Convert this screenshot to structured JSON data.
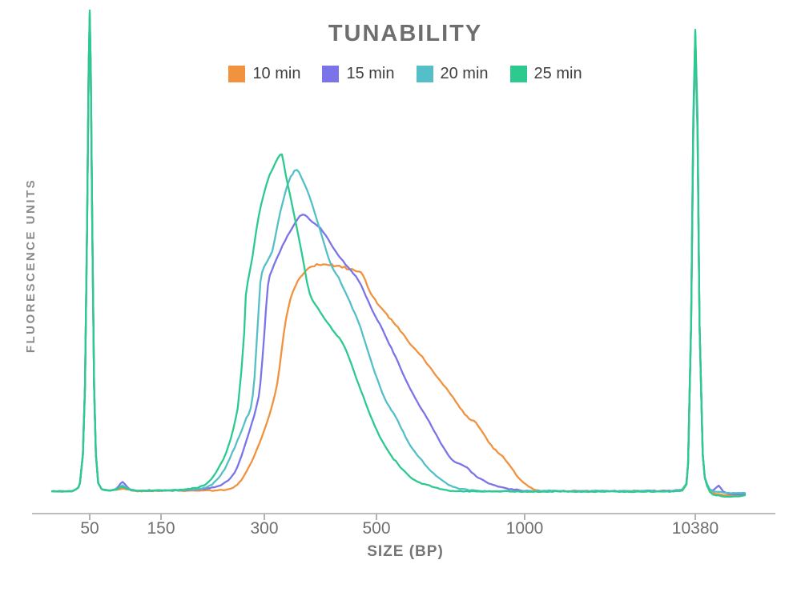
{
  "chart": {
    "title": "TUNABILITY"
  },
  "chart_data": {
    "type": "line",
    "title": "TUNABILITY",
    "xlabel": "SIZE (BP)",
    "ylabel": "FLUORESCENCE UNITS",
    "legend_position": "top-center",
    "x_axis": {
      "scale": "nonlinear-log-like-electropherogram",
      "ticks": [
        50,
        150,
        300,
        500,
        1000,
        10380
      ],
      "tick_labels": [
        "50",
        "150",
        "300",
        "500",
        "1000",
        "10380"
      ]
    },
    "y_axis": {
      "label": "FLUORESCENCE UNITS",
      "ticks_shown": false,
      "range": [
        0,
        100
      ]
    },
    "annotations": [
      "lower marker spike at 50 bp (all traces overlap)",
      "upper marker spike at 10380 bp (all traces overlap)"
    ],
    "series": [
      {
        "name": "10 min",
        "color": "#F0923E",
        "peak_bp": 400,
        "peak_intensity": 47,
        "points": [
          [
            28,
            0.3
          ],
          [
            34,
            0.3
          ],
          [
            39,
            0.5
          ],
          [
            43,
            2
          ],
          [
            45,
            8
          ],
          [
            46.5,
            22
          ],
          [
            48,
            55
          ],
          [
            49.2,
            88
          ],
          [
            50,
            98
          ],
          [
            50.8,
            88
          ],
          [
            52,
            55
          ],
          [
            53.5,
            22
          ],
          [
            55,
            8
          ],
          [
            57,
            2
          ],
          [
            60,
            0.8
          ],
          [
            66,
            0.5
          ],
          [
            75,
            0.6
          ],
          [
            83,
            0.8
          ],
          [
            92,
            0.6
          ],
          [
            105,
            0.3
          ],
          [
            125,
            0.4
          ],
          [
            160,
            0.4
          ],
          [
            200,
            0.5
          ],
          [
            235,
            0.7
          ],
          [
            257,
            2.7
          ],
          [
            280,
            7.6
          ],
          [
            303,
            14.3
          ],
          [
            318,
            22.6
          ],
          [
            331,
            36
          ],
          [
            346,
            43
          ],
          [
            369,
            46.6
          ],
          [
            392,
            47.4
          ],
          [
            412,
            47.1
          ],
          [
            437,
            46.6
          ],
          [
            452,
            46.2
          ],
          [
            470,
            45.3
          ],
          [
            487,
            41.3
          ],
          [
            519,
            37.5
          ],
          [
            553,
            34.2
          ],
          [
            586,
            30.8
          ],
          [
            626,
            27.5
          ],
          [
            667,
            23.7
          ],
          [
            708,
            20.4
          ],
          [
            755,
            16.4
          ],
          [
            805,
            13.8
          ],
          [
            855,
            9.8
          ],
          [
            911,
            7.1
          ],
          [
            971,
            3.2
          ],
          [
            1092,
            1
          ],
          [
            1274,
            0.4
          ],
          [
            1600,
            0.3
          ],
          [
            2200,
            0.4
          ],
          [
            3000,
            0.3
          ],
          [
            4200,
            0.4
          ],
          [
            5600,
            0.3
          ],
          [
            7200,
            0.4
          ],
          [
            8400,
            0.5
          ],
          [
            8900,
            1
          ],
          [
            9400,
            6
          ],
          [
            9800,
            35
          ],
          [
            10100,
            75
          ],
          [
            10380,
            94
          ],
          [
            10700,
            75
          ],
          [
            11000,
            35
          ],
          [
            11500,
            8
          ],
          [
            12200,
            1.5
          ],
          [
            13200,
            0
          ],
          [
            14300,
            -0.3
          ],
          [
            15500,
            -0.5
          ],
          [
            17500,
            -0.5
          ],
          [
            20500,
            -0.4
          ]
        ]
      },
      {
        "name": "15 min",
        "color": "#7B74E8",
        "peak_bp": 357,
        "peak_intensity": 58,
        "points": [
          [
            28,
            0.3
          ],
          [
            34,
            0.4
          ],
          [
            39,
            0.5
          ],
          [
            43,
            2
          ],
          [
            45,
            8
          ],
          [
            46.5,
            22
          ],
          [
            48,
            55
          ],
          [
            49.2,
            88
          ],
          [
            50,
            98.6
          ],
          [
            50.8,
            88
          ],
          [
            52,
            55
          ],
          [
            53.5,
            22
          ],
          [
            55,
            8
          ],
          [
            57,
            2
          ],
          [
            60,
            0.8
          ],
          [
            66,
            0.5
          ],
          [
            75,
            0.8
          ],
          [
            83,
            2.2
          ],
          [
            92,
            0.8
          ],
          [
            105,
            0.4
          ],
          [
            125,
            0.5
          ],
          [
            160,
            0.5
          ],
          [
            200,
            0.8
          ],
          [
            227,
            1.8
          ],
          [
            246,
            4.3
          ],
          [
            262,
            9.3
          ],
          [
            284,
            17.6
          ],
          [
            292,
            22.6
          ],
          [
            300,
            33
          ],
          [
            305,
            43
          ],
          [
            311,
            46.3
          ],
          [
            326,
            51.2
          ],
          [
            344,
            55.7
          ],
          [
            357,
            57.7
          ],
          [
            373,
            56.2
          ],
          [
            387,
            54.9
          ],
          [
            402,
            52.4
          ],
          [
            421,
            49.1
          ],
          [
            460,
            44.1
          ],
          [
            487,
            38.6
          ],
          [
            519,
            33
          ],
          [
            553,
            27
          ],
          [
            586,
            21.4
          ],
          [
            626,
            16.4
          ],
          [
            667,
            11.4
          ],
          [
            708,
            7.1
          ],
          [
            755,
            5.5
          ],
          [
            805,
            3.2
          ],
          [
            855,
            1.8
          ],
          [
            911,
            1
          ],
          [
            982,
            0.5
          ],
          [
            1100,
            0.4
          ],
          [
            1400,
            0.4
          ],
          [
            2000,
            0.3
          ],
          [
            2800,
            0.4
          ],
          [
            3800,
            0.3
          ],
          [
            5000,
            0.4
          ],
          [
            6500,
            0.4
          ],
          [
            8000,
            0.5
          ],
          [
            8900,
            1.2
          ],
          [
            9400,
            6
          ],
          [
            9800,
            35
          ],
          [
            10100,
            75
          ],
          [
            10380,
            94.6
          ],
          [
            10700,
            75
          ],
          [
            11000,
            35
          ],
          [
            11500,
            8
          ],
          [
            12200,
            1.8
          ],
          [
            13200,
            0.5
          ],
          [
            14300,
            1.5
          ],
          [
            15200,
            0.3
          ],
          [
            16500,
            -0.2
          ],
          [
            18500,
            -0.3
          ],
          [
            20500,
            -0.2
          ]
        ]
      },
      {
        "name": "20 min",
        "color": "#55BFC9",
        "peak_bp": 348,
        "peak_intensity": 67,
        "points": [
          [
            28,
            0.3
          ],
          [
            34,
            0.3
          ],
          [
            39,
            0.5
          ],
          [
            43,
            2
          ],
          [
            45,
            8
          ],
          [
            46.5,
            22
          ],
          [
            48,
            55
          ],
          [
            49.2,
            88
          ],
          [
            50,
            99.3
          ],
          [
            50.8,
            88
          ],
          [
            52,
            55
          ],
          [
            53.5,
            22
          ],
          [
            55,
            8
          ],
          [
            57,
            2
          ],
          [
            60,
            0.8
          ],
          [
            66,
            0.5
          ],
          [
            75,
            0.7
          ],
          [
            83,
            1.5
          ],
          [
            92,
            0.7
          ],
          [
            105,
            0.4
          ],
          [
            125,
            0.5
          ],
          [
            160,
            0.5
          ],
          [
            190,
            0.8
          ],
          [
            205,
            1.2
          ],
          [
            217,
            2.5
          ],
          [
            230,
            5
          ],
          [
            246,
            9.5
          ],
          [
            258,
            13
          ],
          [
            266,
            15.5
          ],
          [
            274,
            17.6
          ],
          [
            281,
            24
          ],
          [
            287,
            35
          ],
          [
            292,
            43.6
          ],
          [
            300,
            47
          ],
          [
            311,
            50.2
          ],
          [
            323,
            58.5
          ],
          [
            335,
            64.5
          ],
          [
            341,
            66
          ],
          [
            348,
            67
          ],
          [
            364,
            62.9
          ],
          [
            378,
            57.9
          ],
          [
            392,
            52.4
          ],
          [
            406,
            47.4
          ],
          [
            421,
            44.5
          ],
          [
            443,
            39.5
          ],
          [
            465,
            34.2
          ],
          [
            487,
            27.5
          ],
          [
            519,
            19.7
          ],
          [
            553,
            14.8
          ],
          [
            586,
            9.8
          ],
          [
            626,
            6
          ],
          [
            667,
            3.2
          ],
          [
            708,
            1.5
          ],
          [
            755,
            0.7
          ],
          [
            822,
            0.4
          ],
          [
            1000,
            0.3
          ],
          [
            1400,
            0.4
          ],
          [
            2000,
            0.3
          ],
          [
            2800,
            0.4
          ],
          [
            3800,
            0.3
          ],
          [
            5000,
            0.4
          ],
          [
            6500,
            0.3
          ],
          [
            8000,
            0.5
          ],
          [
            8900,
            1.2
          ],
          [
            9400,
            6
          ],
          [
            9800,
            35
          ],
          [
            10100,
            75
          ],
          [
            10380,
            95.3
          ],
          [
            10700,
            75
          ],
          [
            11000,
            35
          ],
          [
            11500,
            8
          ],
          [
            12200,
            1.8
          ],
          [
            13200,
            0.3
          ],
          [
            14300,
            0.2
          ],
          [
            15500,
            0
          ],
          [
            17500,
            -0.1
          ],
          [
            20500,
            0
          ]
        ]
      },
      {
        "name": "25 min",
        "color": "#2CCA8F",
        "peak_bp": 325,
        "peak_intensity": 70,
        "points": [
          [
            28,
            0.3
          ],
          [
            34,
            0.3
          ],
          [
            39,
            0.5
          ],
          [
            43,
            2
          ],
          [
            45,
            8
          ],
          [
            46.5,
            22
          ],
          [
            48,
            55
          ],
          [
            49.2,
            88
          ],
          [
            50,
            100
          ],
          [
            50.8,
            88
          ],
          [
            52,
            55
          ],
          [
            53.5,
            22
          ],
          [
            55,
            8
          ],
          [
            57,
            2
          ],
          [
            60,
            0.8
          ],
          [
            66,
            0.5
          ],
          [
            75,
            0.7
          ],
          [
            83,
            1.2
          ],
          [
            92,
            0.7
          ],
          [
            105,
            0.4
          ],
          [
            125,
            0.5
          ],
          [
            160,
            0.5
          ],
          [
            185,
            0.9
          ],
          [
            203,
            1.8
          ],
          [
            217,
            4.3
          ],
          [
            235,
            9.3
          ],
          [
            251,
            17.6
          ],
          [
            257,
            25
          ],
          [
            262,
            33
          ],
          [
            265,
            41
          ],
          [
            277,
            49
          ],
          [
            289,
            57.4
          ],
          [
            303,
            64
          ],
          [
            311,
            67
          ],
          [
            319,
            69.2
          ],
          [
            325,
            70
          ],
          [
            331,
            65.7
          ],
          [
            344,
            57.4
          ],
          [
            356,
            49.6
          ],
          [
            369,
            41.3
          ],
          [
            387,
            37.6
          ],
          [
            409,
            33.8
          ],
          [
            432,
            30.3
          ],
          [
            465,
            21.4
          ],
          [
            487,
            15.9
          ],
          [
            519,
            9.8
          ],
          [
            553,
            6
          ],
          [
            586,
            3.2
          ],
          [
            626,
            1.8
          ],
          [
            681,
            0.7
          ],
          [
            736,
            0.3
          ],
          [
            900,
            0.3
          ],
          [
            1200,
            0.2
          ],
          [
            1700,
            0.3
          ],
          [
            2400,
            0.2
          ],
          [
            3300,
            0.3
          ],
          [
            4500,
            0.2
          ],
          [
            6000,
            0.3
          ],
          [
            7700,
            0.3
          ],
          [
            8900,
            1
          ],
          [
            9400,
            6
          ],
          [
            9800,
            35
          ],
          [
            10100,
            78
          ],
          [
            10380,
            96
          ],
          [
            10700,
            78
          ],
          [
            11000,
            35
          ],
          [
            11500,
            8
          ],
          [
            12200,
            1.5
          ],
          [
            13200,
            -0.3
          ],
          [
            14300,
            -0.6
          ],
          [
            15500,
            -0.8
          ],
          [
            17500,
            -0.8
          ],
          [
            20500,
            -0.6
          ]
        ]
      }
    ]
  }
}
